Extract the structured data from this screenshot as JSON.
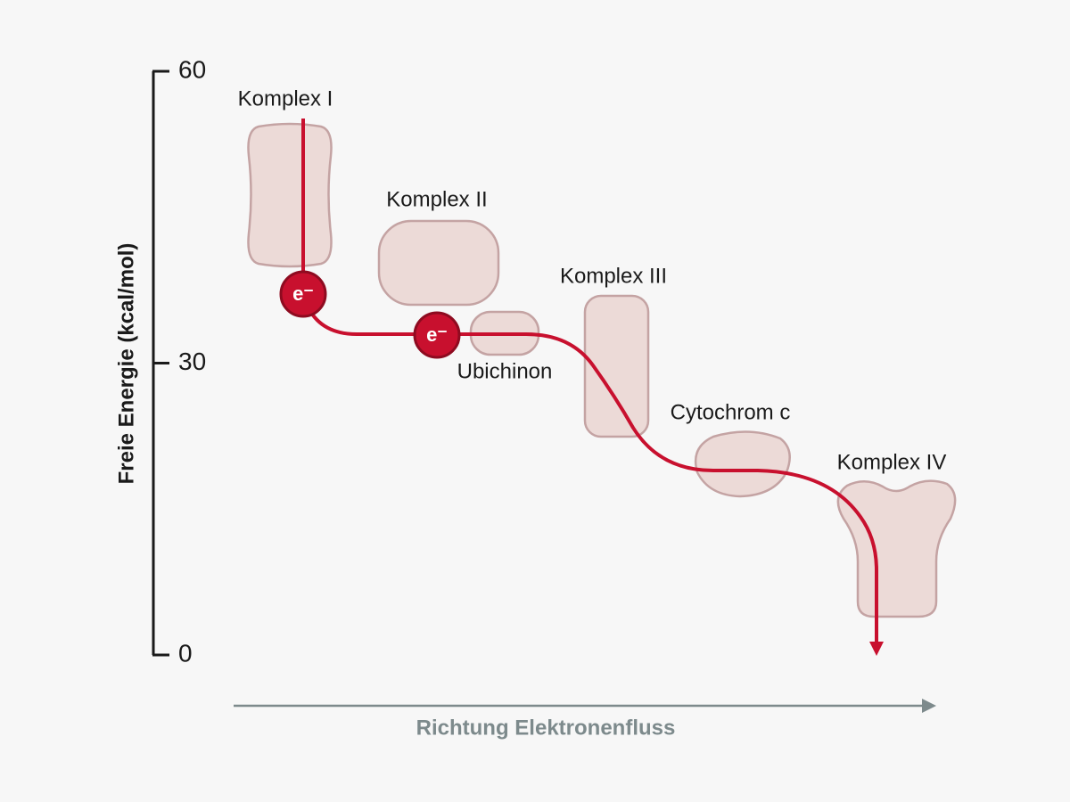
{
  "y_axis": {
    "label": "Freie Energie (kcal/mol)",
    "ticks": [
      60,
      30,
      0
    ]
  },
  "x_axis": {
    "label": "Richtung Elektronenfluss"
  },
  "nodes": [
    {
      "label": "Komplex I"
    },
    {
      "label": "Komplex II"
    },
    {
      "label": "Ubichinon"
    },
    {
      "label": "Komplex III"
    },
    {
      "label": "Cytochrom c"
    },
    {
      "label": "Komplex IV"
    }
  ],
  "electrons": [
    "e⁻",
    "e⁻"
  ]
}
